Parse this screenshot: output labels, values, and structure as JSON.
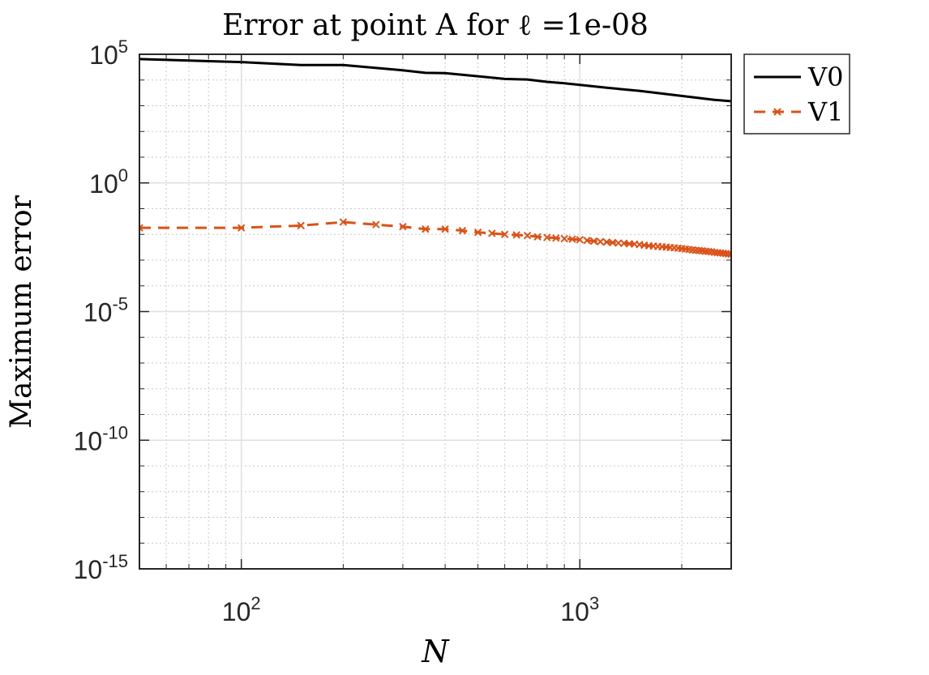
{
  "chart_data": {
    "type": "line",
    "title": "Error at point A for ℓ =1e-08",
    "xlabel": "N",
    "ylabel": "Maximum error",
    "x_scale": "log",
    "y_scale": "log",
    "xlim": [
      50,
      2800
    ],
    "ylim": [
      1e-15,
      100000
    ],
    "x_ticks": [
      {
        "value": 100,
        "base": "10",
        "exp": "2"
      },
      {
        "value": 1000,
        "base": "10",
        "exp": "3"
      }
    ],
    "y_ticks": [
      {
        "value": 1e-15,
        "base": "10",
        "exp": "-15"
      },
      {
        "value": 1e-10,
        "base": "10",
        "exp": "-10"
      },
      {
        "value": 1e-05,
        "base": "10",
        "exp": "-5"
      },
      {
        "value": 1,
        "base": "10",
        "exp": "0"
      },
      {
        "value": 100000,
        "base": "10",
        "exp": "5"
      }
    ],
    "grid": true,
    "minor_grid": true,
    "legend_position": "outside-top-right",
    "series": [
      {
        "name": "V0",
        "color": "#000000",
        "line_style": "solid",
        "marker": "none",
        "points": [
          [
            50,
            65000
          ],
          [
            100,
            50000
          ],
          [
            150,
            38000
          ],
          [
            200,
            38000
          ],
          [
            300,
            24000
          ],
          [
            350,
            19000
          ],
          [
            400,
            18500
          ],
          [
            500,
            14000
          ],
          [
            600,
            11000
          ],
          [
            700,
            10500
          ],
          [
            800,
            8500
          ],
          [
            900,
            7500
          ],
          [
            1000,
            6500
          ],
          [
            1200,
            5000
          ],
          [
            1500,
            3800
          ],
          [
            2000,
            2400
          ],
          [
            2500,
            1700
          ],
          [
            2800,
            1500
          ]
        ]
      },
      {
        "name": "V1",
        "color": "#d95319",
        "line_style": "dashed",
        "marker": "x",
        "points": [
          [
            50,
            0.018
          ],
          [
            100,
            0.018
          ],
          [
            150,
            0.022
          ],
          [
            200,
            0.03
          ],
          [
            250,
            0.024
          ],
          [
            300,
            0.02
          ],
          [
            350,
            0.016
          ],
          [
            400,
            0.016
          ],
          [
            450,
            0.014
          ],
          [
            500,
            0.012
          ],
          [
            550,
            0.011
          ],
          [
            600,
            0.01
          ],
          [
            650,
            0.0095
          ],
          [
            700,
            0.009
          ],
          [
            750,
            0.008
          ],
          [
            800,
            0.0076
          ],
          [
            850,
            0.0072
          ],
          [
            900,
            0.0068
          ],
          [
            950,
            0.0065
          ],
          [
            1000,
            0.0062
          ],
          [
            1050,
            0.0058
          ],
          [
            1100,
            0.0055
          ],
          [
            1150,
            0.0052
          ],
          [
            1200,
            0.005
          ],
          [
            1250,
            0.0048
          ],
          [
            1300,
            0.0046
          ],
          [
            1350,
            0.0045
          ],
          [
            1400,
            0.0043
          ],
          [
            1450,
            0.0042
          ],
          [
            1500,
            0.004
          ],
          [
            1550,
            0.0038
          ],
          [
            1600,
            0.0036
          ],
          [
            1650,
            0.0035
          ],
          [
            1700,
            0.0034
          ],
          [
            1750,
            0.0033
          ],
          [
            1800,
            0.0032
          ],
          [
            1850,
            0.0031
          ],
          [
            1900,
            0.003
          ],
          [
            1950,
            0.0029
          ],
          [
            2000,
            0.0028
          ],
          [
            2050,
            0.0027
          ],
          [
            2100,
            0.0026
          ],
          [
            2150,
            0.0025
          ],
          [
            2200,
            0.0024
          ],
          [
            2250,
            0.00235
          ],
          [
            2300,
            0.0023
          ],
          [
            2350,
            0.0022
          ],
          [
            2400,
            0.00215
          ],
          [
            2450,
            0.0021
          ],
          [
            2500,
            0.002
          ],
          [
            2550,
            0.00195
          ],
          [
            2600,
            0.0019
          ],
          [
            2650,
            0.00185
          ],
          [
            2700,
            0.0018
          ],
          [
            2750,
            0.00175
          ],
          [
            2800,
            0.0017
          ]
        ]
      }
    ]
  }
}
